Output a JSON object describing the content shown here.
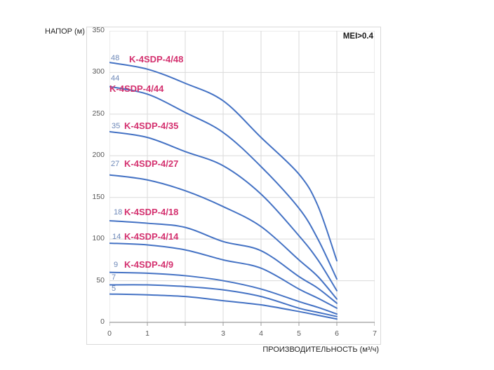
{
  "chart_data": {
    "type": "line",
    "title": "",
    "ylabel": "НАПОР (м)",
    "xlabel": "ПРОИЗВОДИТЕЛЬНОСТЬ (м³/ч)",
    "annotation": "MEI>0.4",
    "xlim": [
      0,
      7
    ],
    "ylim": [
      0,
      350
    ],
    "grid": true,
    "xtick_labels": [
      "0",
      "1",
      "3",
      "4",
      "5",
      "6",
      "7"
    ],
    "xtick_values": [
      0,
      1,
      3,
      4,
      5,
      6,
      7
    ],
    "ytick_values": [
      0,
      50,
      100,
      150,
      200,
      250,
      300,
      350
    ],
    "x": [
      0,
      1,
      2,
      3,
      4,
      5,
      5.5,
      6
    ],
    "series": [
      {
        "stage": "48",
        "name": "K-4SDP-4/48",
        "values": [
          312,
          304,
          287,
          266,
          222,
          178,
          140,
          74
        ],
        "label_pos": {
          "stage": [
            157,
            76
          ],
          "name": [
            183,
            76
          ]
        }
      },
      {
        "stage": "44",
        "name": "K-4SDP-4/44",
        "values": [
          283,
          274,
          252,
          228,
          187,
          137,
          100,
          52
        ],
        "label_pos": {
          "stage": [
            157,
            105
          ],
          "name": [
            155,
            118
          ]
        }
      },
      {
        "stage": "35",
        "name": "K-4SDP-4/35",
        "values": [
          229,
          222,
          205,
          188,
          154,
          104,
          75,
          38
        ],
        "label_pos": {
          "stage": [
            158,
            173
          ],
          "name": [
            176,
            171
          ]
        }
      },
      {
        "stage": "27",
        "name": "K-4SDP-4/27",
        "values": [
          177,
          171,
          158,
          139,
          115,
          75,
          55,
          28
        ],
        "label_pos": {
          "stage": [
            157,
            227
          ],
          "name": [
            176,
            225
          ]
        }
      },
      {
        "stage": "18",
        "name": "K-4SDP-4/18",
        "values": [
          122,
          119,
          114,
          97,
          86,
          55,
          41,
          23
        ],
        "label_pos": {
          "stage": [
            161,
            296
          ],
          "name": [
            176,
            294
          ]
        }
      },
      {
        "stage": "14",
        "name": "K-4SDP-4/14",
        "values": [
          95,
          93,
          87,
          75,
          65,
          40,
          29,
          17
        ],
        "label_pos": {
          "stage": [
            159,
            331
          ],
          "name": [
            176,
            329
          ]
        }
      },
      {
        "stage": "9",
        "name": "K-4SDP-4/9",
        "values": [
          60,
          59,
          56,
          50,
          40,
          25,
          18,
          10
        ],
        "label_pos": {
          "stage": [
            161,
            371
          ],
          "name": [
            176,
            369
          ]
        }
      },
      {
        "stage": "7",
        "name": null,
        "values": [
          45,
          45,
          43,
          39,
          31,
          17,
          12,
          7
        ],
        "label_pos": {
          "stage": [
            158,
            389
          ],
          "name": null
        }
      },
      {
        "stage": "5",
        "name": null,
        "values": [
          34,
          33,
          31,
          26,
          21,
          13,
          8.5,
          4
        ],
        "label_pos": {
          "stage": [
            158,
            405
          ],
          "name": null
        }
      }
    ],
    "colors": {
      "curve": "#4472c4",
      "stage_label": "#6d88b8",
      "name_label": "#d4316f",
      "grid": "#dadada",
      "axis": "#9b9b9b",
      "tick_text": "#595959"
    }
  }
}
